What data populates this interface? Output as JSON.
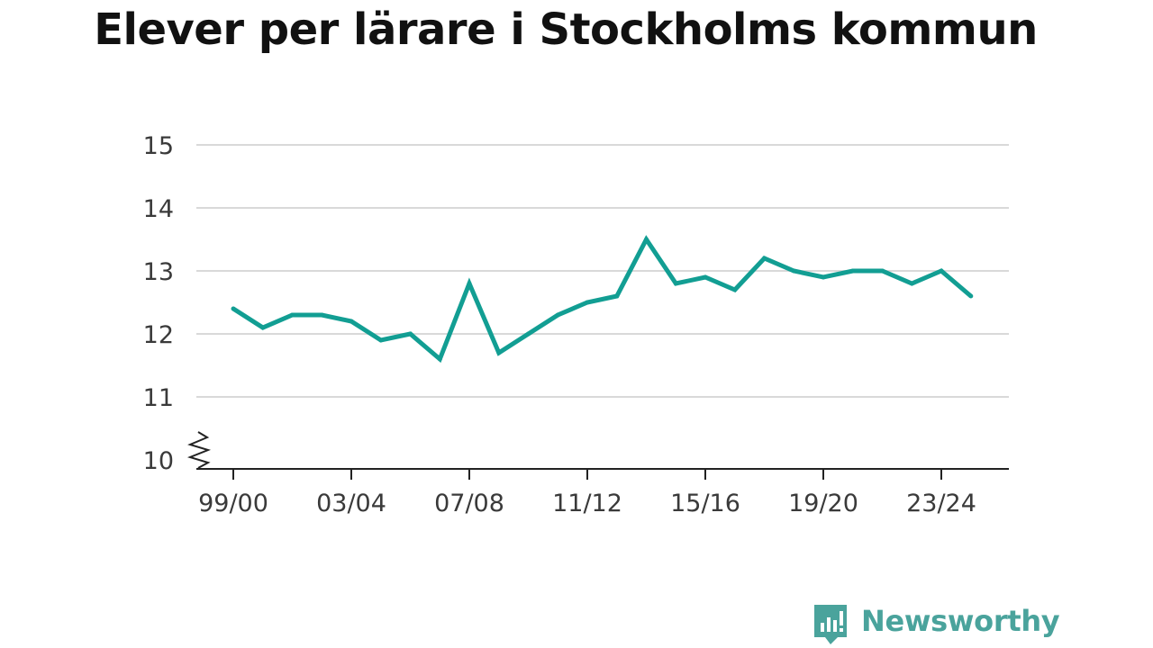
{
  "chart_data": {
    "type": "line",
    "title": "Elever per lärare i Stockholms kommun",
    "xlabel": "",
    "ylabel": "",
    "ylim": [
      10,
      15
    ],
    "y_axis_break": true,
    "grid": true,
    "y_ticks": [
      "10",
      "11",
      "12",
      "13",
      "14",
      "15"
    ],
    "x_tick_labels": [
      "99/00",
      "03/04",
      "07/08",
      "11/12",
      "15/16",
      "19/20",
      "23/24"
    ],
    "x": [
      "99/00",
      "00/01",
      "01/02",
      "02/03",
      "03/04",
      "04/05",
      "05/06",
      "06/07",
      "07/08",
      "08/09",
      "09/10",
      "10/11",
      "11/12",
      "12/13",
      "13/14",
      "14/15",
      "15/16",
      "16/17",
      "17/18",
      "18/19",
      "19/20",
      "20/21",
      "21/22",
      "22/23",
      "23/24",
      "24/25"
    ],
    "series": [
      {
        "name": "",
        "color": "#129e93",
        "values": [
          12.4,
          12.1,
          12.3,
          12.3,
          12.2,
          11.9,
          12.0,
          11.6,
          12.8,
          11.7,
          12.0,
          12.3,
          12.5,
          12.6,
          13.5,
          12.8,
          12.9,
          12.7,
          13.2,
          13.0,
          12.9,
          13.0,
          13.0,
          12.8,
          13.0,
          12.6
        ]
      }
    ]
  },
  "branding": {
    "name": "Newsworthy",
    "color": "#4aa39c",
    "icon": "newsworthy-logo-icon"
  }
}
